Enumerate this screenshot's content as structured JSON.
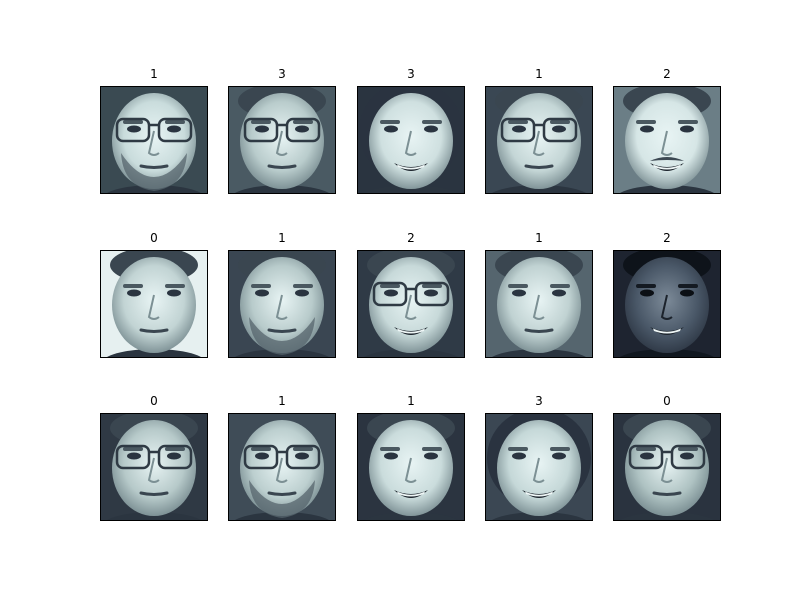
{
  "figure": {
    "rows": 3,
    "cols": 5,
    "colormap": "bone",
    "panels": [
      {
        "title": "1",
        "subject": "bald man with glasses and short beard",
        "skin": "#c9dcdc",
        "bg": "#3a4a52",
        "glasses": true,
        "beard": true,
        "smile": false,
        "hair": "bald",
        "dark": false
      },
      {
        "title": "3",
        "subject": "man with large glasses, mouth open",
        "skin": "#b9cccc",
        "bg": "#4a5a63",
        "glasses": true,
        "beard": false,
        "smile": false,
        "hair": "short",
        "dark": false
      },
      {
        "title": "3",
        "subject": "smiling woman",
        "skin": "#cfe0e0",
        "bg": "#2a3440",
        "glasses": false,
        "beard": false,
        "smile": true,
        "hair": "long",
        "dark": false
      },
      {
        "title": "1",
        "subject": "man with glasses",
        "skin": "#c4d6d6",
        "bg": "#3a4753",
        "glasses": true,
        "beard": false,
        "smile": false,
        "hair": "short",
        "dark": false
      },
      {
        "title": "2",
        "subject": "smiling man with mustache",
        "skin": "#d6e6e6",
        "bg": "#6b7e86",
        "glasses": false,
        "beard": false,
        "smile": true,
        "mustache": true,
        "hair": "short",
        "dark": false
      },
      {
        "title": "0",
        "subject": "young man slight smile",
        "skin": "#c2d4d4",
        "bg": "#e6f0f0",
        "glasses": false,
        "beard": false,
        "smile": false,
        "hair": "short",
        "dark": false
      },
      {
        "title": "1",
        "subject": "man with goatee",
        "skin": "#b8cbcb",
        "bg": "#3a4652",
        "glasses": false,
        "beard": true,
        "smile": false,
        "hair": "short",
        "dark": false
      },
      {
        "title": "2",
        "subject": "smiling man with glasses",
        "skin": "#c7d9d9",
        "bg": "#2f3a46",
        "glasses": true,
        "beard": false,
        "smile": true,
        "hair": "short",
        "dark": false
      },
      {
        "title": "1",
        "subject": "man neutral",
        "skin": "#c0d2d2",
        "bg": "#55656e",
        "glasses": false,
        "beard": false,
        "smile": false,
        "hair": "short",
        "dark": false
      },
      {
        "title": "2",
        "subject": "smiling dark-skinned man",
        "skin": "#4a5868",
        "bg": "#1e2430",
        "glasses": false,
        "beard": false,
        "smile": true,
        "hair": "short",
        "dark": true
      },
      {
        "title": "0",
        "subject": "man with glasses",
        "skin": "#b6c9c9",
        "bg": "#2f3944",
        "glasses": true,
        "beard": false,
        "smile": false,
        "hair": "short",
        "dark": false
      },
      {
        "title": "1",
        "subject": "man with glasses and beard",
        "skin": "#bccfcf",
        "bg": "#3f4c57",
        "glasses": true,
        "beard": true,
        "smile": false,
        "hair": "bald",
        "dark": false
      },
      {
        "title": "1",
        "subject": "young man slight smile",
        "skin": "#cadcdc",
        "bg": "#2b3440",
        "glasses": false,
        "beard": false,
        "smile": true,
        "hair": "short",
        "dark": false
      },
      {
        "title": "3",
        "subject": "smiling woman tilted",
        "skin": "#c5d8d8",
        "bg": "#3b4753",
        "glasses": false,
        "beard": false,
        "smile": true,
        "hair": "long",
        "dark": false
      },
      {
        "title": "0",
        "subject": "man with glasses",
        "skin": "#aec2c2",
        "bg": "#2a333f",
        "glasses": true,
        "beard": false,
        "smile": false,
        "hair": "short",
        "dark": false
      }
    ]
  }
}
